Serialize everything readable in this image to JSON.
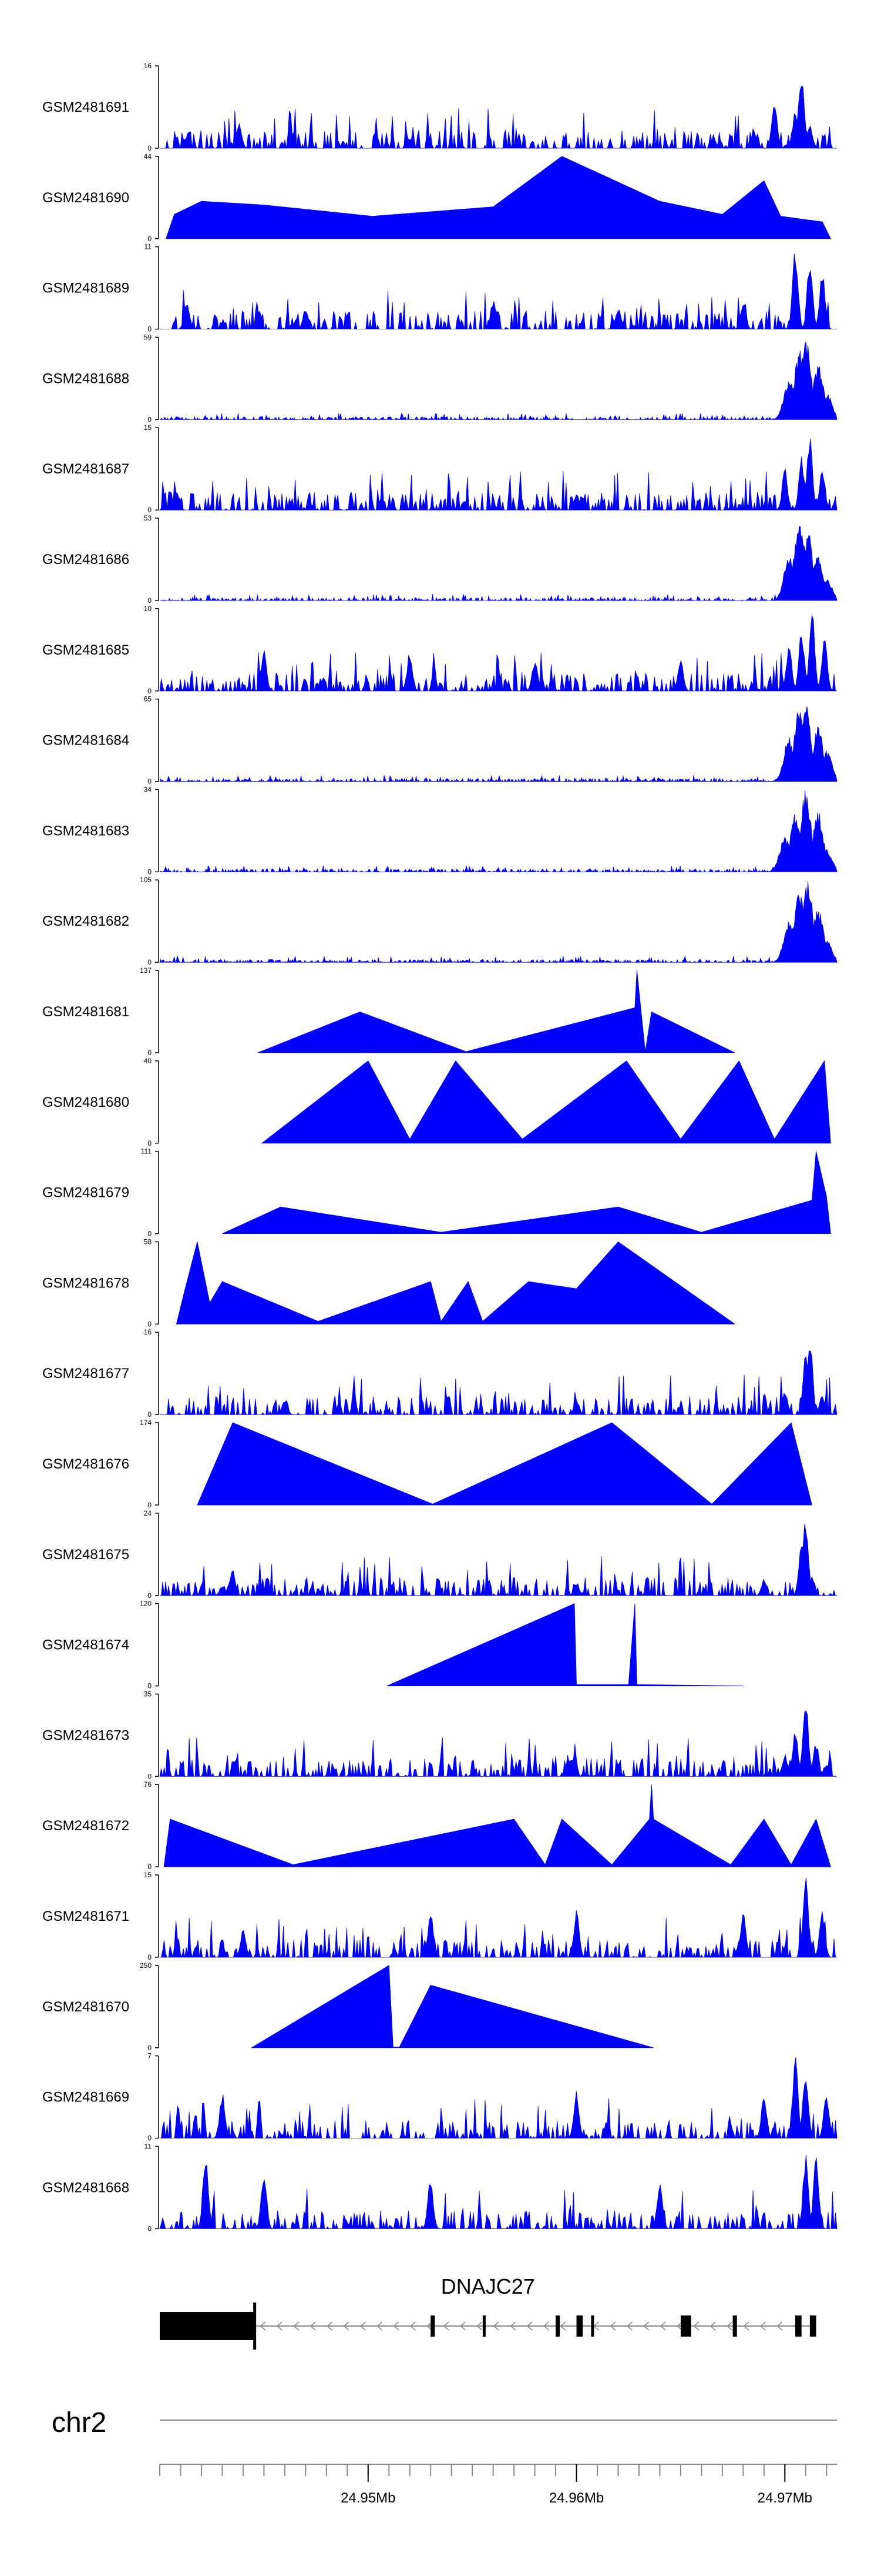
{
  "chart_data": {
    "type": "area",
    "title": "",
    "xlabel": "",
    "ylabel": "",
    "genome_axis": {
      "chromosome": "chr2",
      "xlim_mb": [
        24.94,
        24.9725
      ],
      "tick_step_mb": 0.001,
      "labeled_ticks": [
        {
          "mb": 24.95,
          "label": "24.95Mb"
        },
        {
          "mb": 24.96,
          "label": "24.96Mb"
        },
        {
          "mb": 24.97,
          "label": "24.97Mb"
        }
      ]
    },
    "gene": {
      "name": "DNAJC27",
      "strand": "-",
      "span_mb": [
        24.94,
        24.9715
      ],
      "exons_mb": [
        [
          24.94,
          24.9445
        ],
        [
          24.953,
          24.9532
        ],
        [
          24.9555,
          24.9556
        ],
        [
          24.959,
          24.9592
        ],
        [
          24.96,
          24.9603
        ],
        [
          24.9607,
          24.9608
        ],
        [
          24.965,
          24.9655
        ],
        [
          24.9675,
          24.9677
        ],
        [
          24.9705,
          24.9708
        ],
        [
          24.9712,
          24.9715
        ]
      ]
    },
    "series": [
      {
        "name": "GSM2481691",
        "ylim": [
          0,
          16
        ],
        "style": "noisy",
        "coverage_mb": [
          24.94,
          24.9725
        ],
        "peaks": [
          [
            24.9438,
            5
          ],
          [
            24.9685,
            3
          ],
          [
            24.9695,
            9
          ],
          [
            24.9705,
            8
          ],
          [
            24.9708,
            16
          ],
          [
            24.9712,
            5
          ]
        ]
      },
      {
        "name": "GSM2481690",
        "ylim": [
          0,
          44
        ],
        "style": "sparse",
        "coverage_mb": [
          24.9403,
          24.9722
        ],
        "peaks": [
          [
            24.9407,
            13
          ],
          [
            24.942,
            20
          ],
          [
            24.945,
            18
          ],
          [
            24.9502,
            12
          ],
          [
            24.956,
            17
          ],
          [
            24.9593,
            44
          ],
          [
            24.964,
            20
          ],
          [
            24.967,
            13
          ],
          [
            24.9698,
            12
          ],
          [
            24.969,
            31
          ],
          [
            24.9718,
            9
          ]
        ]
      },
      {
        "name": "GSM2481689",
        "ylim": [
          0,
          11
        ],
        "style": "noisy",
        "coverage_mb": [
          24.94,
          24.9725
        ],
        "peaks": [
          [
            24.9413,
            4
          ],
          [
            24.947,
            3
          ],
          [
            24.956,
            4
          ],
          [
            24.962,
            3
          ],
          [
            24.968,
            4
          ],
          [
            24.9705,
            11
          ],
          [
            24.9712,
            10
          ],
          [
            24.9718,
            8
          ]
        ]
      },
      {
        "name": "GSM2481688",
        "ylim": [
          0,
          59
        ],
        "style": "endpeak",
        "coverage_mb": [
          24.94,
          24.9725
        ],
        "peaks": [
          [
            24.9702,
            30
          ],
          [
            24.9707,
            50
          ],
          [
            24.971,
            59
          ],
          [
            24.9716,
            40
          ],
          [
            24.972,
            20
          ]
        ]
      },
      {
        "name": "GSM2481687",
        "ylim": [
          0,
          15
        ],
        "style": "noisy",
        "coverage_mb": [
          24.94,
          24.9725
        ],
        "peaks": [
          [
            24.9408,
            4
          ],
          [
            24.96,
            3
          ],
          [
            24.97,
            8
          ],
          [
            24.9708,
            10
          ],
          [
            24.9712,
            14
          ],
          [
            24.9718,
            8
          ]
        ]
      },
      {
        "name": "GSM2481686",
        "ylim": [
          0,
          53
        ],
        "style": "endpeak",
        "coverage_mb": [
          24.94,
          24.9725
        ],
        "peaks": [
          [
            24.9702,
            30
          ],
          [
            24.9707,
            53
          ],
          [
            24.9711,
            45
          ],
          [
            24.9716,
            30
          ],
          [
            24.972,
            15
          ]
        ]
      },
      {
        "name": "GSM2481685",
        "ylim": [
          0,
          10
        ],
        "style": "noisy",
        "coverage_mb": [
          24.94,
          24.9725
        ],
        "peaks": [
          [
            24.945,
            5
          ],
          [
            24.952,
            5
          ],
          [
            24.958,
            4
          ],
          [
            24.965,
            4
          ],
          [
            24.9702,
            6
          ],
          [
            24.9708,
            8
          ],
          [
            24.9713,
            10
          ],
          [
            24.9719,
            7
          ]
        ]
      },
      {
        "name": "GSM2481684",
        "ylim": [
          0,
          65
        ],
        "style": "endpeak",
        "coverage_mb": [
          24.94,
          24.9725
        ],
        "peaks": [
          [
            24.9702,
            35
          ],
          [
            24.9707,
            60
          ],
          [
            24.971,
            65
          ],
          [
            24.9716,
            45
          ],
          [
            24.972,
            25
          ]
        ]
      },
      {
        "name": "GSM2481683",
        "ylim": [
          0,
          34
        ],
        "style": "endpeak",
        "coverage_mb": [
          24.94,
          24.9725
        ],
        "peaks": [
          [
            24.97,
            15
          ],
          [
            24.9705,
            25
          ],
          [
            24.971,
            34
          ],
          [
            24.9716,
            25
          ],
          [
            24.972,
            10
          ]
        ]
      },
      {
        "name": "GSM2481682",
        "ylim": [
          0,
          105
        ],
        "style": "endpeak",
        "coverage_mb": [
          24.94,
          24.9725
        ],
        "peaks": [
          [
            24.9702,
            55
          ],
          [
            24.9707,
            95
          ],
          [
            24.9711,
            105
          ],
          [
            24.9716,
            70
          ],
          [
            24.972,
            30
          ]
        ]
      },
      {
        "name": "GSM2481681",
        "ylim": [
          0,
          137
        ],
        "style": "sparse",
        "coverage_mb": [
          24.9447,
          24.9676
        ],
        "peaks": [
          [
            24.9496,
            68
          ],
          [
            24.9547,
            2
          ],
          [
            24.9628,
            75
          ],
          [
            24.9629,
            137
          ],
          [
            24.9633,
            2
          ],
          [
            24.9636,
            68
          ]
        ]
      },
      {
        "name": "GSM2481680",
        "ylim": [
          0,
          40
        ],
        "style": "sparse",
        "coverage_mb": [
          24.9449,
          24.9722
        ],
        "peaks": [
          [
            24.95,
            40
          ],
          [
            24.952,
            2
          ],
          [
            24.9542,
            40
          ],
          [
            24.9574,
            2
          ],
          [
            24.9624,
            40
          ],
          [
            24.965,
            2
          ],
          [
            24.9678,
            40
          ],
          [
            24.9695,
            2
          ],
          [
            24.9719,
            40
          ]
        ]
      },
      {
        "name": "GSM2481679",
        "ylim": [
          0,
          111
        ],
        "style": "sparse",
        "coverage_mb": [
          24.943,
          24.9722
        ],
        "peaks": [
          [
            24.9458,
            36
          ],
          [
            24.9535,
            2
          ],
          [
            24.962,
            36
          ],
          [
            24.966,
            2
          ],
          [
            24.9713,
            45
          ],
          [
            24.9715,
            111
          ],
          [
            24.972,
            50
          ]
        ]
      },
      {
        "name": "GSM2481678",
        "ylim": [
          0,
          58
        ],
        "style": "sparse",
        "coverage_mb": [
          24.9408,
          24.9676
        ],
        "peaks": [
          [
            24.9412,
            24
          ],
          [
            24.9418,
            58
          ],
          [
            24.9424,
            15
          ],
          [
            24.943,
            30
          ],
          [
            24.9476,
            2
          ],
          [
            24.953,
            30
          ],
          [
            24.9535,
            2
          ],
          [
            24.9548,
            30
          ],
          [
            24.9555,
            2
          ],
          [
            24.9577,
            30
          ],
          [
            24.96,
            25
          ],
          [
            24.962,
            58
          ]
        ]
      },
      {
        "name": "GSM2481677",
        "ylim": [
          0,
          16
        ],
        "style": "noisy",
        "coverage_mb": [
          24.94,
          24.9725
        ],
        "peaks": [
          [
            24.946,
            3
          ],
          [
            24.96,
            3
          ],
          [
            24.97,
            5
          ],
          [
            24.971,
            12
          ],
          [
            24.9712,
            16
          ],
          [
            24.9718,
            4
          ]
        ]
      },
      {
        "name": "GSM2481676",
        "ylim": [
          0,
          174
        ],
        "style": "sparse",
        "coverage_mb": [
          24.9418,
          24.9713
        ],
        "peaks": [
          [
            24.9435,
            174
          ],
          [
            24.9531,
            2
          ],
          [
            24.9617,
            174
          ],
          [
            24.9665,
            2
          ],
          [
            24.9703,
            174
          ]
        ]
      },
      {
        "name": "GSM2481675",
        "ylim": [
          0,
          24
        ],
        "style": "noisy",
        "coverage_mb": [
          24.94,
          24.9725
        ],
        "peaks": [
          [
            24.943,
            3
          ],
          [
            24.9435,
            8
          ],
          [
            24.96,
            4
          ],
          [
            24.969,
            5
          ],
          [
            24.9708,
            18
          ],
          [
            24.971,
            24
          ],
          [
            24.9713,
            6
          ]
        ]
      },
      {
        "name": "GSM2481674",
        "ylim": [
          0,
          120
        ],
        "style": "sparse",
        "coverage_mb": [
          24.9509,
          24.968
        ],
        "peaks": [
          [
            24.9599,
            120
          ],
          [
            24.96,
            2
          ],
          [
            24.961,
            2
          ],
          [
            24.9625,
            2
          ],
          [
            24.9628,
            120
          ],
          [
            24.9629,
            2
          ]
        ]
      },
      {
        "name": "GSM2481673",
        "ylim": [
          0,
          35
        ],
        "style": "noisy",
        "coverage_mb": [
          24.94,
          24.9725
        ],
        "peaks": [
          [
            24.97,
            10
          ],
          [
            24.9705,
            20
          ],
          [
            24.971,
            35
          ],
          [
            24.9715,
            15
          ],
          [
            24.972,
            5
          ]
        ]
      },
      {
        "name": "GSM2481672",
        "ylim": [
          0,
          76
        ],
        "style": "sparse",
        "coverage_mb": [
          24.9402,
          24.9722
        ],
        "peaks": [
          [
            24.9405,
            44
          ],
          [
            24.9464,
            2
          ],
          [
            24.957,
            44
          ],
          [
            24.9585,
            2
          ],
          [
            24.9593,
            44
          ],
          [
            24.9617,
            2
          ],
          [
            24.9635,
            44
          ],
          [
            24.9636,
            76
          ],
          [
            24.9637,
            44
          ],
          [
            24.9674,
            2
          ],
          [
            24.969,
            44
          ],
          [
            24.9703,
            2
          ],
          [
            24.9715,
            44
          ]
        ]
      },
      {
        "name": "GSM2481671",
        "ylim": [
          0,
          15
        ],
        "style": "noisy",
        "coverage_mb": [
          24.94,
          24.9725
        ],
        "peaks": [
          [
            24.944,
            5
          ],
          [
            24.953,
            9
          ],
          [
            24.96,
            9
          ],
          [
            24.968,
            9
          ],
          [
            24.971,
            15
          ],
          [
            24.9718,
            9
          ]
        ]
      },
      {
        "name": "GSM2481670",
        "ylim": [
          0,
          250
        ],
        "style": "sparse",
        "coverage_mb": [
          24.9444,
          24.9637
        ],
        "peaks": [
          [
            24.951,
            250
          ],
          [
            24.9512,
            2
          ],
          [
            24.9515,
            2
          ],
          [
            24.953,
            190
          ]
        ]
      },
      {
        "name": "GSM2481669",
        "ylim": [
          0,
          7
        ],
        "style": "noisy",
        "coverage_mb": [
          24.94,
          24.9725
        ],
        "peaks": [
          [
            24.943,
            4
          ],
          [
            24.96,
            4
          ],
          [
            24.969,
            4
          ],
          [
            24.9705,
            7
          ],
          [
            24.971,
            6
          ],
          [
            24.972,
            4
          ]
        ]
      },
      {
        "name": "GSM2481668",
        "ylim": [
          0,
          11
        ],
        "style": "noisy",
        "coverage_mb": [
          24.94,
          24.9725
        ],
        "peaks": [
          [
            24.9422,
            11
          ],
          [
            24.945,
            8
          ],
          [
            24.953,
            7
          ],
          [
            24.964,
            7
          ],
          [
            24.971,
            10
          ],
          [
            24.9715,
            10
          ]
        ]
      }
    ]
  },
  "colors": {
    "signal": "#0000FF",
    "axis": "#000000",
    "gene": "#000000",
    "intron": "#888888"
  }
}
